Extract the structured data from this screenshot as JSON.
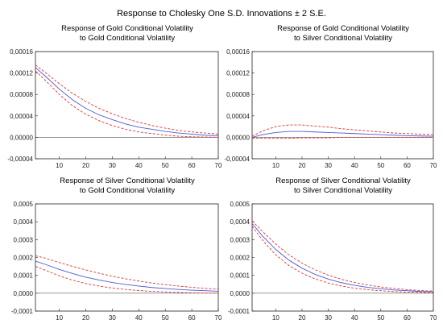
{
  "title": "Response to Cholesky One S.D. Innovations ± 2 S.E.",
  "colors": {
    "response": "#4a5bd6",
    "bands": "#e83030",
    "frame": "#222222",
    "zero": "#555555"
  },
  "chart_data": [
    {
      "type": "line",
      "title_line1": "Response of Gold Conditional Volatility",
      "title_line2": "to Gold Conditional Volatility",
      "xlim": [
        1,
        70
      ],
      "ylim": [
        -4e-05,
        0.00016
      ],
      "xticks": [
        10,
        20,
        30,
        40,
        50,
        60,
        70
      ],
      "yticks": [
        -4e-05,
        0.0,
        4e-05,
        8e-05,
        0.00012,
        0.00016
      ],
      "ytick_labels": [
        "-0,00004",
        "0,00000",
        "0,00004",
        "0,00008",
        "0,00012",
        "0,00016"
      ],
      "x": [
        1,
        5,
        10,
        15,
        20,
        25,
        30,
        35,
        40,
        45,
        50,
        55,
        60,
        65,
        70
      ],
      "series": [
        {
          "values": [
            0.00013,
            0.000113,
            9e-05,
            7e-05,
            5.4e-05,
            4.2e-05,
            3.3e-05,
            2.5e-05,
            1.9e-05,
            1.5e-05,
            1.1e-05,
            8e-06,
            6e-06,
            4e-06,
            3e-06
          ]
        },
        {
          "values": [
            0.000135,
            0.00012,
            0.0001,
            8.2e-05,
            6.7e-05,
            5.4e-05,
            4.4e-05,
            3.5e-05,
            2.8e-05,
            2.2e-05,
            1.7e-05,
            1.3e-05,
            1e-05,
            8e-06,
            6e-06
          ]
        },
        {
          "values": [
            0.000124,
            0.000105,
            8e-05,
            5.9e-05,
            4.3e-05,
            3.1e-05,
            2.2e-05,
            1.5e-05,
            1e-05,
            7e-06,
            4e-06,
            2e-06,
            1e-06,
            5e-07,
            0.0
          ]
        }
      ]
    },
    {
      "type": "line",
      "title_line1": "Response of Gold Conditional Volatility",
      "title_line2": "to Silver Conditional Volatility",
      "xlim": [
        1,
        70
      ],
      "ylim": [
        -4e-05,
        0.00016
      ],
      "xticks": [
        10,
        20,
        30,
        40,
        50,
        60,
        70
      ],
      "yticks": [
        -4e-05,
        0.0,
        4e-05,
        8e-05,
        0.00012,
        0.00016
      ],
      "ytick_labels": [
        "-0,00004",
        "0,00000",
        "0,00004",
        "0,00008",
        "0,00012",
        "0,00016"
      ],
      "x": [
        1,
        5,
        10,
        15,
        20,
        25,
        30,
        35,
        40,
        45,
        50,
        55,
        60,
        65,
        70
      ],
      "series": [
        {
          "values": [
            0.0,
            5e-06,
            9e-06,
            1.1e-05,
            1.1e-05,
            1e-05,
            9e-06,
            8e-06,
            7e-06,
            6e-06,
            5e-06,
            4e-06,
            3e-06,
            2.5e-06,
            2e-06
          ]
        },
        {
          "values": [
            2e-06,
            1.2e-05,
            2e-05,
            2.3e-05,
            2.3e-05,
            2.1e-05,
            1.9e-05,
            1.6e-05,
            1.4e-05,
            1.2e-05,
            1e-05,
            8e-06,
            7e-06,
            6e-06,
            5e-06
          ]
        },
        {
          "values": [
            -2e-06,
            -2e-06,
            -2e-06,
            -2e-06,
            -1e-06,
            -1e-06,
            -1e-06,
            0.0,
            0.0,
            0.0,
            0.0,
            0.0,
            0.0,
            0.0,
            0.0
          ]
        }
      ]
    },
    {
      "type": "line",
      "title_line1": "Response of Silver Conditional Volatility",
      "title_line2": "to Gold Conditional Volatility",
      "xlim": [
        1,
        70
      ],
      "ylim": [
        -0.0001,
        0.0005
      ],
      "xticks": [
        10,
        20,
        30,
        40,
        50,
        60,
        70
      ],
      "yticks": [
        -0.0001,
        0.0,
        0.0001,
        0.0002,
        0.0003,
        0.0004,
        0.0005
      ],
      "ytick_labels": [
        "-0,0001",
        "0,0000",
        "0,0001",
        "0,0002",
        "0,0003",
        "0,0004",
        "0,0005"
      ],
      "x": [
        1,
        5,
        10,
        15,
        20,
        25,
        30,
        35,
        40,
        45,
        50,
        55,
        60,
        65,
        70
      ],
      "series": [
        {
          "values": [
            0.00018,
            0.00016,
            0.000133,
            0.00011,
            9e-05,
            7.4e-05,
            6e-05,
            4.9e-05,
            4e-05,
            3.2e-05,
            2.6e-05,
            2.1e-05,
            1.7e-05,
            1.4e-05,
            1.1e-05
          ]
        },
        {
          "values": [
            0.00021,
            0.000195,
            0.000172,
            0.00015,
            0.00013,
            0.000112,
            9.5e-05,
            8.1e-05,
            6.8e-05,
            5.7e-05,
            4.8e-05,
            4e-05,
            3.3e-05,
            2.7e-05,
            2.3e-05
          ]
        },
        {
          "values": [
            0.00015,
            0.000127,
            9.7e-05,
            7.3e-05,
            5.4e-05,
            4e-05,
            2.9e-05,
            2.1e-05,
            1.5e-05,
            1e-05,
            7e-06,
            4e-06,
            2e-06,
            1e-06,
            0.0
          ]
        }
      ]
    },
    {
      "type": "line",
      "title_line1": "Response of Silver Conditional Volatility",
      "title_line2": "to Silver Conditional Volatility",
      "xlim": [
        1,
        70
      ],
      "ylim": [
        -0.0001,
        0.0005
      ],
      "xticks": [
        10,
        20,
        30,
        40,
        50,
        60,
        70
      ],
      "yticks": [
        -0.0001,
        0.0,
        0.0001,
        0.0002,
        0.0003,
        0.0004,
        0.0005
      ],
      "ytick_labels": [
        "-0,0001",
        "0,0000",
        "0,0001",
        "0,0002",
        "0,0003",
        "0,0004",
        "0,0005"
      ],
      "x": [
        1,
        5,
        10,
        15,
        20,
        25,
        30,
        35,
        40,
        45,
        50,
        55,
        60,
        65,
        70
      ],
      "series": [
        {
          "values": [
            0.00039,
            0.00032,
            0.000245,
            0.000185,
            0.00014,
            0.000105,
            7.9e-05,
            5.9e-05,
            4.4e-05,
            3.3e-05,
            2.5e-05,
            1.8e-05,
            1.4e-05,
            1e-05,
            8e-06
          ]
        },
        {
          "values": [
            0.000405,
            0.000345,
            0.000275,
            0.000215,
            0.000168,
            0.000131,
            0.000101,
            7.8e-05,
            6e-05,
            4.6e-05,
            3.5e-05,
            2.7e-05,
            2e-05,
            1.5e-05,
            1.2e-05
          ]
        },
        {
          "values": [
            0.000375,
            0.000296,
            0.000215,
            0.000155,
            0.000112,
            8e-05,
            5.7e-05,
            4e-05,
            2.8e-05,
            2e-05,
            1.4e-05,
            9e-06,
            6e-06,
            4e-06,
            3e-06
          ]
        }
      ]
    }
  ]
}
